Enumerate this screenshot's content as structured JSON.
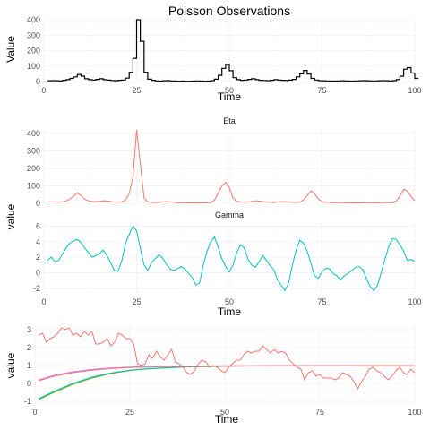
{
  "chart_data": [
    {
      "type": "line",
      "style": "step",
      "title": "Poisson Observations",
      "xlabel": "Time",
      "ylabel": "Value",
      "xlim": [
        0,
        100
      ],
      "ylim": [
        0,
        400
      ],
      "xticks": [
        0,
        25,
        50,
        75,
        100
      ],
      "yticks": [
        0,
        100,
        200,
        300,
        400
      ],
      "grid": true,
      "series": [
        {
          "color": "#000000",
          "x": [
            1,
            2,
            3,
            4,
            5,
            6,
            7,
            8,
            9,
            10,
            11,
            12,
            13,
            14,
            15,
            16,
            17,
            18,
            19,
            20,
            21,
            22,
            23,
            24,
            25,
            26,
            27,
            28,
            29,
            30,
            31,
            32,
            33,
            34,
            35,
            36,
            37,
            38,
            39,
            40,
            41,
            42,
            43,
            44,
            45,
            46,
            47,
            48,
            49,
            50,
            51,
            52,
            53,
            54,
            55,
            56,
            57,
            58,
            59,
            60,
            61,
            62,
            63,
            64,
            65,
            66,
            67,
            68,
            69,
            70,
            71,
            72,
            73,
            74,
            75,
            76,
            77,
            78,
            79,
            80,
            81,
            82,
            83,
            84,
            85,
            86,
            87,
            88,
            89,
            90,
            91,
            92,
            93,
            94,
            95,
            96,
            97,
            98,
            99,
            100
          ],
          "values": [
            5,
            6,
            5,
            4,
            8,
            12,
            20,
            30,
            45,
            35,
            18,
            12,
            10,
            14,
            18,
            12,
            9,
            7,
            6,
            8,
            10,
            22,
            60,
            150,
            400,
            260,
            60,
            15,
            8,
            4,
            3,
            5,
            6,
            4,
            3,
            2,
            3,
            2,
            2,
            3,
            4,
            3,
            2,
            3,
            6,
            15,
            40,
            85,
            110,
            70,
            25,
            12,
            8,
            10,
            14,
            18,
            12,
            8,
            7,
            6,
            8,
            12,
            10,
            8,
            7,
            9,
            14,
            30,
            50,
            72,
            48,
            20,
            10,
            6,
            5,
            4,
            3,
            3,
            4,
            5,
            4,
            3,
            3,
            4,
            5,
            6,
            5,
            4,
            4,
            5,
            6,
            5,
            4,
            6,
            12,
            35,
            80,
            90,
            55,
            20
          ]
        }
      ]
    },
    {
      "type": "line",
      "xlabel": "Time",
      "ylabel": "value",
      "xlim": [
        0,
        100
      ],
      "xticks": [
        0,
        25,
        50,
        75,
        100
      ],
      "grid": true,
      "facets": [
        {
          "strip": "Eta",
          "ylim": [
            0,
            420
          ],
          "yticks": [
            0,
            100,
            200,
            300,
            400
          ],
          "series": [
            {
              "color": "#F8766D",
              "x": [
                1,
                2,
                3,
                4,
                5,
                6,
                7,
                8,
                9,
                10,
                11,
                12,
                13,
                14,
                15,
                16,
                17,
                18,
                19,
                20,
                21,
                22,
                23,
                24,
                25,
                26,
                27,
                28,
                29,
                30,
                31,
                32,
                33,
                34,
                35,
                36,
                37,
                38,
                39,
                40,
                41,
                42,
                43,
                44,
                45,
                46,
                47,
                48,
                49,
                50,
                51,
                52,
                53,
                54,
                55,
                56,
                57,
                58,
                59,
                60,
                61,
                62,
                63,
                64,
                65,
                66,
                67,
                68,
                69,
                70,
                71,
                72,
                73,
                74,
                75,
                76,
                77,
                78,
                79,
                80,
                81,
                82,
                83,
                84,
                85,
                86,
                87,
                88,
                89,
                90,
                91,
                92,
                93,
                94,
                95,
                96,
                97,
                98,
                99,
                100
              ],
              "values": [
                6,
                8,
                7,
                6,
                8,
                14,
                25,
                40,
                60,
                45,
                24,
                15,
                11,
                10,
                12,
                15,
                14,
                10,
                7,
                6,
                8,
                20,
                55,
                150,
                420,
                230,
                30,
                8,
                5,
                4,
                5,
                8,
                10,
                8,
                6,
                4,
                3,
                3,
                3,
                2,
                2,
                2,
                3,
                3,
                4,
                18,
                60,
                100,
                120,
                90,
                30,
                12,
                8,
                6,
                7,
                10,
                15,
                13,
                10,
                7,
                6,
                5,
                7,
                10,
                9,
                7,
                6,
                5,
                7,
                20,
                45,
                70,
                55,
                25,
                10,
                6,
                5,
                4,
                4,
                5,
                4,
                3,
                3,
                2,
                2,
                3,
                4,
                4,
                3,
                3,
                4,
                5,
                4,
                4,
                14,
                40,
                80,
                70,
                40,
                15
              ]
            }
          ]
        },
        {
          "strip": "Gamma",
          "ylim": [
            -2.6,
            6.4
          ],
          "yticks": [
            -2,
            0,
            2,
            4,
            6
          ],
          "series": [
            {
              "color": "#00BFC4",
              "x": [
                1,
                2,
                3,
                4,
                5,
                6,
                7,
                8,
                9,
                10,
                11,
                12,
                13,
                14,
                15,
                16,
                17,
                18,
                19,
                20,
                21,
                22,
                23,
                24,
                25,
                26,
                27,
                28,
                29,
                30,
                31,
                32,
                33,
                34,
                35,
                36,
                37,
                38,
                39,
                40,
                41,
                42,
                43,
                44,
                45,
                46,
                47,
                48,
                49,
                50,
                51,
                52,
                53,
                54,
                55,
                56,
                57,
                58,
                59,
                60,
                61,
                62,
                63,
                64,
                65,
                66,
                67,
                68,
                69,
                70,
                71,
                72,
                73,
                74,
                75,
                76,
                77,
                78,
                79,
                80,
                81,
                82,
                83,
                84,
                85,
                86,
                87,
                88,
                89,
                90,
                91,
                92,
                93,
                94,
                95,
                96,
                97,
                98,
                99,
                100
              ],
              "values": [
                1.6,
                2,
                1.4,
                1.6,
                2.4,
                3.2,
                3.8,
                4.1,
                4.3,
                3.9,
                3.2,
                2.6,
                2.0,
                2.2,
                2.5,
                2.9,
                2.2,
                1.3,
                0.3,
                0.2,
                1.5,
                3.8,
                4.9,
                6.0,
                5.4,
                3.2,
                1.0,
                0.3,
                1.3,
                1.8,
                2.3,
                1.9,
                1.1,
                0.5,
                0.3,
                0.5,
                0.8,
                0.5,
                -0.1,
                -0.6,
                -1.6,
                -1.3,
                1.0,
                2.8,
                4.0,
                4.6,
                3.3,
                1.8,
                0.8,
                0.1,
                1.0,
                2.6,
                3.6,
                3.2,
                1.8,
                1.0,
                0.7,
                1.4,
                2.2,
                1.6,
                0.9,
                0.4,
                -0.9,
                -1.6,
                -2.3,
                -1.3,
                1.0,
                2.9,
                4.2,
                3.8,
                2.8,
                1.2,
                -0.4,
                -0.7,
                0.1,
                0.6,
                0.5,
                -0.1,
                -0.4,
                -0.9,
                -0.4,
                -0.1,
                0.3,
                0.7,
                0.8,
                0.4,
                -0.8,
                -1.8,
                -2.3,
                -1.6,
                0.1,
                1.8,
                3.4,
                4.4,
                4.3,
                3.6,
                2.8,
                1.6,
                1.7,
                1.5
              ]
            }
          ]
        }
      ]
    },
    {
      "type": "line",
      "xlabel": "Time",
      "ylabel": "value",
      "xlim": [
        0,
        100
      ],
      "ylim": [
        -1.1,
        3.3
      ],
      "xticks": [
        0,
        25,
        50,
        75,
        100
      ],
      "yticks": [
        -1,
        0,
        1,
        2,
        3
      ],
      "grid": true,
      "series": [
        {
          "color": "#F8766D",
          "x": [
            1,
            2,
            3,
            4,
            5,
            6,
            7,
            8,
            9,
            10,
            11,
            12,
            13,
            14,
            15,
            16,
            17,
            18,
            19,
            20,
            21,
            22,
            23,
            24,
            25,
            26,
            27,
            28,
            29,
            30,
            31,
            32,
            33,
            34,
            35,
            36,
            37,
            38,
            39,
            40,
            41,
            42,
            43,
            44,
            45,
            46,
            47,
            48,
            49,
            50,
            51,
            52,
            53,
            54,
            55,
            56,
            57,
            58,
            59,
            60,
            61,
            62,
            63,
            64,
            65,
            66,
            67,
            68,
            69,
            70,
            71,
            72,
            73,
            74,
            75,
            76,
            77,
            78,
            79,
            80,
            81,
            82,
            83,
            84,
            85,
            86,
            87,
            88,
            89,
            90,
            91,
            92,
            93,
            94,
            95,
            96,
            97,
            98,
            99,
            100
          ],
          "values": [
            2.7,
            2.8,
            2.3,
            2.5,
            2.6,
            2.8,
            3.1,
            3.0,
            3.1,
            2.7,
            2.8,
            2.6,
            2.9,
            2.7,
            2.9,
            2.2,
            2.2,
            2.3,
            2.5,
            2.1,
            2.3,
            2.8,
            2.7,
            2.5,
            2.5,
            2.2,
            1.1,
            1.0,
            1.1,
            1.6,
            1.4,
            1.8,
            1.5,
            1.3,
            1.6,
            1.9,
            1.2,
            1.1,
            0.9,
            0.6,
            0.5,
            0.7,
            1.1,
            1.3,
            1.2,
            0.9,
            1.0,
            0.9,
            0.7,
            0.6,
            0.9,
            1.1,
            1.3,
            1.3,
            1.6,
            1.8,
            1.7,
            1.8,
            1.8,
            2.1,
            1.9,
            1.7,
            1.9,
            1.7,
            1.8,
            1.7,
            1.3,
            1.1,
            0.9,
            0.8,
            0.2,
            0.6,
            0.7,
            0.4,
            0.5,
            0.3,
            0.3,
            0.3,
            0.2,
            0.3,
            0.6,
            0.5,
            0.4,
            0.1,
            -0.3,
            0.1,
            0.4,
            0.8,
            0.9,
            0.7,
            0.6,
            0.4,
            0.2,
            0.4,
            0.7,
            0.9,
            0.6,
            0.5,
            0.8,
            0.6
          ]
        },
        {
          "color": "#7CAE00",
          "x": [
            1,
            5,
            10,
            15,
            20,
            25,
            30,
            40,
            50,
            60,
            70,
            80,
            90,
            100
          ],
          "values": [
            -0.9,
            -0.5,
            -0.05,
            0.3,
            0.55,
            0.72,
            0.82,
            0.92,
            0.96,
            0.98,
            0.99,
            0.99,
            1.0,
            1.0
          ]
        },
        {
          "color": "#00BFC4",
          "x": [
            1,
            5,
            10,
            15,
            20,
            25,
            30,
            40,
            50,
            60,
            70,
            80,
            90,
            100
          ],
          "values": [
            -0.85,
            -0.45,
            0.0,
            0.35,
            0.58,
            0.74,
            0.83,
            0.93,
            0.96,
            0.98,
            0.99,
            0.99,
            1.0,
            1.0
          ]
        },
        {
          "color": "#C77CFF",
          "x": [
            1,
            5,
            10,
            15,
            20,
            25,
            30,
            40,
            50,
            60,
            70,
            80,
            90,
            100
          ],
          "values": [
            0.2,
            0.45,
            0.65,
            0.78,
            0.86,
            0.91,
            0.94,
            0.97,
            0.98,
            0.99,
            0.99,
            1.0,
            1.0,
            1.0
          ]
        },
        {
          "color": "#F8766D",
          "x": [
            1,
            5,
            10,
            15,
            20,
            25,
            30,
            40,
            50,
            60,
            70,
            80,
            90,
            100
          ],
          "values": [
            0.15,
            0.4,
            0.6,
            0.74,
            0.83,
            0.89,
            0.92,
            0.96,
            0.98,
            0.99,
            0.99,
            1.0,
            1.0,
            1.0
          ]
        }
      ]
    }
  ]
}
